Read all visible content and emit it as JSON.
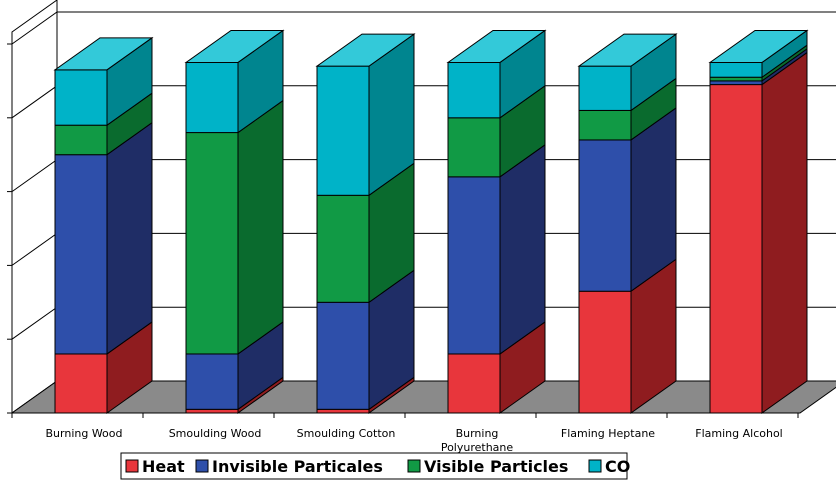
{
  "chart_data": {
    "type": "bar",
    "stacked": true,
    "three_d": true,
    "categories": [
      [
        "Burning Wood"
      ],
      [
        "Smoulding Wood"
      ],
      [
        "Smoulding Cotton"
      ],
      [
        "Burning",
        "Polyurethane"
      ],
      [
        "Flaming Heptane"
      ],
      [
        "Flaming Alcohol"
      ]
    ],
    "series": [
      {
        "name": "Heat",
        "color": "#e8363c",
        "side": "#8f1c1f",
        "top": "#f0686c",
        "values": [
          16,
          1,
          1,
          16,
          33,
          89
        ]
      },
      {
        "name": "Invisible Particales",
        "color": "#2e4faa",
        "side": "#1f2d66",
        "top": "#4a6cc8",
        "values": [
          54,
          15,
          29,
          48,
          41,
          1
        ]
      },
      {
        "name": "Visible Particles",
        "color": "#119a45",
        "side": "#0a6b2e",
        "top": "#2bb860",
        "values": [
          8,
          60,
          29,
          16,
          8,
          1
        ]
      },
      {
        "name": "CO",
        "color": "#00b3c8",
        "side": "#00858f",
        "top": "#33c9d9",
        "values": [
          15,
          19,
          35,
          15,
          12,
          4
        ]
      }
    ],
    "ylim": [
      0,
      100
    ],
    "grid": true,
    "legend_position": "bottom"
  }
}
